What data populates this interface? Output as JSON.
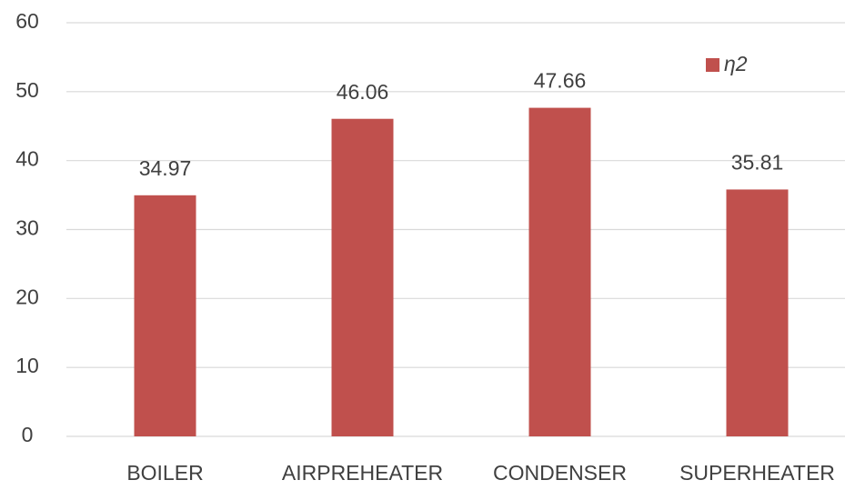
{
  "chart_data": {
    "type": "bar",
    "categories": [
      "BOILER",
      "AIRPREHEATER",
      "CONDENSER",
      "SUPERHEATER"
    ],
    "series": [
      {
        "name": "η2",
        "color": "#c0504d",
        "values": [
          34.97,
          46.06,
          47.66,
          35.81
        ]
      }
    ],
    "ylim": [
      0,
      60
    ],
    "yticks": [
      0,
      10,
      20,
      30,
      40,
      50,
      60
    ],
    "grid": true,
    "legend": "upper right"
  }
}
